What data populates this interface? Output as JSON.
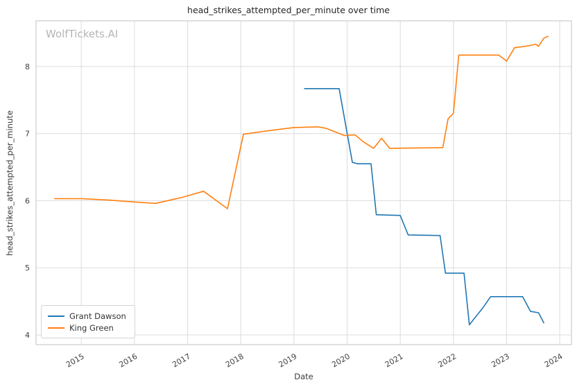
{
  "watermark": "WolfTickets.AI",
  "chart_data": {
    "type": "line",
    "title": "head_strikes_attempted_per_minute over time",
    "xlabel": "Date",
    "ylabel": "head_strikes_attempted_per_minute",
    "xlim": [
      2014.15,
      2024.22
    ],
    "ylim": [
      3.855,
      8.68
    ],
    "x_ticks": [
      2015,
      2016,
      2017,
      2018,
      2019,
      2020,
      2021,
      2022,
      2023,
      2024
    ],
    "y_ticks": [
      4,
      5,
      6,
      7,
      8
    ],
    "grid": true,
    "legend_position": "lower left",
    "series": [
      {
        "name": "Grant Dawson",
        "color": "#1f77b4",
        "points": [
          [
            2019.2,
            7.67
          ],
          [
            2019.85,
            7.67
          ],
          [
            2020.1,
            6.57
          ],
          [
            2020.2,
            6.55
          ],
          [
            2020.45,
            6.55
          ],
          [
            2020.55,
            5.79
          ],
          [
            2021.0,
            5.78
          ],
          [
            2021.15,
            5.49
          ],
          [
            2021.75,
            5.48
          ],
          [
            2021.85,
            4.92
          ],
          [
            2022.2,
            4.92
          ],
          [
            2022.3,
            4.15
          ],
          [
            2022.55,
            4.4
          ],
          [
            2022.7,
            4.57
          ],
          [
            2023.3,
            4.57
          ],
          [
            2023.45,
            4.35
          ],
          [
            2023.6,
            4.33
          ],
          [
            2023.7,
            4.18
          ]
        ]
      },
      {
        "name": "King Green",
        "color": "#ff7f0e",
        "points": [
          [
            2014.5,
            6.03
          ],
          [
            2015.0,
            6.03
          ],
          [
            2015.5,
            6.01
          ],
          [
            2016.0,
            5.98
          ],
          [
            2016.4,
            5.96
          ],
          [
            2016.9,
            6.05
          ],
          [
            2017.3,
            6.14
          ],
          [
            2017.75,
            5.88
          ],
          [
            2018.05,
            6.99
          ],
          [
            2018.5,
            7.04
          ],
          [
            2019.0,
            7.09
          ],
          [
            2019.45,
            7.1
          ],
          [
            2019.6,
            7.08
          ],
          [
            2019.95,
            6.97
          ],
          [
            2020.15,
            6.98
          ],
          [
            2020.3,
            6.88
          ],
          [
            2020.5,
            6.78
          ],
          [
            2020.65,
            6.93
          ],
          [
            2020.8,
            6.78
          ],
          [
            2021.8,
            6.79
          ],
          [
            2021.9,
            7.22
          ],
          [
            2022.0,
            7.3
          ],
          [
            2022.1,
            8.17
          ],
          [
            2022.85,
            8.17
          ],
          [
            2023.0,
            8.08
          ],
          [
            2023.15,
            8.28
          ],
          [
            2023.35,
            8.3
          ],
          [
            2023.55,
            8.33
          ],
          [
            2023.6,
            8.3
          ],
          [
            2023.7,
            8.42
          ],
          [
            2023.78,
            8.45
          ]
        ]
      }
    ]
  }
}
